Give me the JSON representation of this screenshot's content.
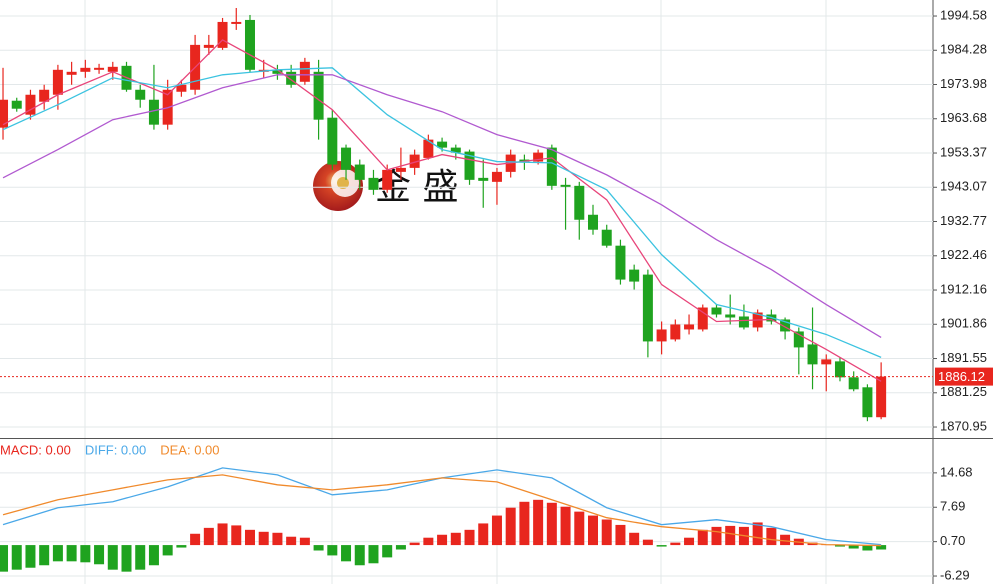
{
  "watermark": "金 盛",
  "chart_data": [
    {
      "type": "candlestick",
      "up_color": "#e8261e",
      "down_color": "#1fa31f",
      "xlim": [
        -0.22,
        67.78
      ],
      "ylim": [
        1867.65,
        1999.4
      ],
      "yticks": [
        1994.58,
        1984.28,
        1973.98,
        1963.68,
        1953.37,
        1943.07,
        1932.77,
        1922.46,
        1912.16,
        1901.86,
        1891.55,
        1881.25,
        1870.95
      ],
      "grid": true,
      "last_price": 1886.12,
      "open": [
        1961.0,
        1969.1,
        1964.9,
        1968.8,
        1970.9,
        1976.9,
        1977.8,
        1978.4,
        1977.8,
        1979.6,
        1972.4,
        1969.4,
        1961.9,
        1971.8,
        1972.4,
        1985.0,
        1985.0,
        1992.2,
        1993.4,
        1977.8,
        1978.4,
        1977.8,
        1974.8,
        1977.8,
        1964.0,
        1955.0,
        1949.9,
        1945.9,
        1942.3,
        1947.7,
        1948.9,
        1951.9,
        1956.8,
        1955.0,
        1953.8,
        1945.9,
        1944.7,
        1947.7,
        1951.4,
        1950.8,
        1955.0,
        1943.8,
        1943.5,
        1934.8,
        1930.3,
        1925.5,
        1918.3,
        1916.8,
        1896.7,
        1897.3,
        1900.3,
        1900.3,
        1906.9,
        1904.8,
        1904.2,
        1900.9,
        1904.8,
        1903.3,
        1899.7,
        1895.8,
        1889.8,
        1890.7,
        1885.9,
        1882.9,
        1873.9
      ],
      "high": [
        1979.0,
        1970.0,
        1972.4,
        1973.9,
        1979.9,
        1980.8,
        1981.4,
        1980.2,
        1980.8,
        1980.8,
        1973.9,
        1979.9,
        1975.4,
        1975.4,
        1988.9,
        1988.9,
        1994.0,
        1997.0,
        1994.9,
        1981.4,
        1979.9,
        1979.9,
        1982.0,
        1981.4,
        1966.4,
        1955.9,
        1951.4,
        1948.3,
        1949.9,
        1955.0,
        1954.4,
        1958.9,
        1958.0,
        1955.9,
        1954.4,
        1951.4,
        1948.9,
        1954.4,
        1952.9,
        1954.4,
        1955.9,
        1945.9,
        1944.7,
        1937.8,
        1931.8,
        1927.3,
        1919.8,
        1918.3,
        1902.7,
        1903.3,
        1904.8,
        1907.8,
        1907.8,
        1910.8,
        1907.8,
        1906.3,
        1906.3,
        1903.9,
        1900.9,
        1906.9,
        1892.8,
        1891.9,
        1887.7,
        1883.8,
        1890.4
      ],
      "low": [
        1957.4,
        1965.8,
        1963.4,
        1966.4,
        1966.4,
        1973.9,
        1976.0,
        1977.2,
        1975.4,
        1971.8,
        1967.0,
        1960.4,
        1960.4,
        1970.3,
        1970.9,
        1982.9,
        1984.4,
        1990.4,
        1977.8,
        1976.0,
        1975.4,
        1973.0,
        1973.9,
        1957.4,
        1948.3,
        1945.3,
        1942.3,
        1940.8,
        1941.4,
        1945.3,
        1946.8,
        1951.4,
        1953.8,
        1951.4,
        1943.8,
        1936.9,
        1937.8,
        1946.0,
        1948.3,
        1949.9,
        1942.3,
        1930.3,
        1927.3,
        1928.8,
        1924.9,
        1913.8,
        1912.3,
        1891.9,
        1892.8,
        1896.7,
        1898.8,
        1899.7,
        1903.9,
        1901.8,
        1900.3,
        1899.7,
        1901.8,
        1897.3,
        1886.8,
        1882.3,
        1881.7,
        1884.7,
        1881.7,
        1872.7,
        1873.3
      ],
      "close": [
        1969.4,
        1966.7,
        1970.9,
        1972.4,
        1978.4,
        1977.8,
        1979.0,
        1979.0,
        1979.3,
        1972.4,
        1969.4,
        1961.9,
        1972.4,
        1973.9,
        1985.9,
        1985.9,
        1992.8,
        1992.8,
        1978.4,
        1978.4,
        1977.2,
        1973.9,
        1980.8,
        1963.4,
        1949.9,
        1948.3,
        1945.3,
        1942.3,
        1948.3,
        1948.9,
        1952.9,
        1957.4,
        1955.0,
        1953.5,
        1945.3,
        1945.0,
        1947.7,
        1952.9,
        1950.8,
        1953.5,
        1943.5,
        1943.2,
        1933.3,
        1930.3,
        1925.5,
        1915.3,
        1914.7,
        1896.7,
        1900.3,
        1901.8,
        1901.8,
        1906.9,
        1904.8,
        1903.9,
        1900.9,
        1905.4,
        1902.7,
        1899.7,
        1894.9,
        1889.8,
        1891.3,
        1885.9,
        1882.3,
        1873.9,
        1886.12
      ],
      "lines": [
        {
          "color": "#e8457a",
          "x": [
            0,
            4,
            8,
            12,
            16,
            20,
            24,
            28,
            32,
            36,
            40,
            44,
            48,
            52,
            56,
            60,
            64
          ],
          "values": [
            1961.9,
            1970.9,
            1977.8,
            1970.9,
            1987.4,
            1978.4,
            1966.4,
            1948.3,
            1952.9,
            1949.9,
            1951.9,
            1939.3,
            1913.8,
            1902.7,
            1903.3,
            1894.3,
            1884.7
          ]
        },
        {
          "color": "#3cc3e0",
          "x": [
            0,
            4,
            8,
            12,
            16,
            20,
            24,
            28,
            32,
            36,
            40,
            44,
            48,
            52,
            56,
            60,
            64
          ],
          "values": [
            1960.4,
            1967.9,
            1976.0,
            1973.0,
            1976.9,
            1978.4,
            1979.0,
            1964.9,
            1954.4,
            1950.8,
            1950.4,
            1942.3,
            1922.8,
            1907.8,
            1903.9,
            1898.8,
            1891.9
          ]
        },
        {
          "color": "#b15ad0",
          "x": [
            0,
            4,
            8,
            12,
            16,
            20,
            24,
            28,
            32,
            36,
            40,
            44,
            48,
            52,
            56,
            60,
            64
          ],
          "values": [
            1945.9,
            1954.4,
            1963.4,
            1967.0,
            1973.0,
            1976.9,
            1976.9,
            1970.9,
            1965.8,
            1958.9,
            1954.4,
            1946.8,
            1937.8,
            1927.3,
            1918.3,
            1907.8,
            1897.9
          ]
        }
      ]
    },
    {
      "type": "macd",
      "up_color": "#e8261e",
      "down_color": "#1fa31f",
      "xlim": [
        -0.22,
        67.78
      ],
      "ylim": [
        -7.91,
        21.36
      ],
      "yticks": [
        14.68,
        7.69,
        {
          "value": 0.7,
          "label": "0.70"
        },
        -6.29
      ],
      "grid": true,
      "series": [
        {
          "name": "MACD: 0.00",
          "color": "#e8261e",
          "values": [
            -5.4,
            -5.0,
            -4.6,
            -4.1,
            -3.3,
            -3.3,
            -3.5,
            -3.9,
            -5.0,
            -5.4,
            -5.0,
            -4.1,
            -2.1,
            -0.5,
            2.3,
            3.5,
            4.4,
            4.0,
            3.1,
            2.7,
            2.5,
            1.7,
            1.5,
            -1.1,
            -2.1,
            -3.3,
            -4.1,
            -3.7,
            -2.5,
            -0.9,
            0.5,
            1.5,
            2.1,
            2.5,
            3.1,
            4.4,
            6.0,
            7.6,
            8.8,
            9.2,
            8.6,
            7.8,
            6.8,
            6.0,
            5.2,
            4.1,
            2.5,
            1.1,
            -0.3,
            0.5,
            1.5,
            3.1,
            3.7,
            3.9,
            3.7,
            4.6,
            3.5,
            2.1,
            1.3,
            0.5,
            0.1,
            -0.3,
            -0.7,
            -1.1,
            -0.9
          ]
        },
        {
          "name": "DIFF: 0.00",
          "color": "#4aa8e8",
          "x": [
            0,
            4,
            8,
            12,
            16,
            20,
            24,
            28,
            32,
            36,
            40,
            44,
            48,
            52,
            56,
            60,
            64
          ],
          "values": [
            4.15,
            7.59,
            8.81,
            11.84,
            15.69,
            14.27,
            10.22,
            11.23,
            13.66,
            15.28,
            13.66,
            7.59,
            4.15,
            5.16,
            3.74,
            1.11,
            0.1
          ]
        },
        {
          "name": "DEA: 0.00",
          "color": "#f08a2c",
          "x": [
            0,
            4,
            8,
            12,
            16,
            20,
            24,
            28,
            32,
            36,
            40,
            44,
            48,
            52,
            56,
            60,
            64
          ],
          "values": [
            6.17,
            9.21,
            11.23,
            13.26,
            14.27,
            12.25,
            11.23,
            12.25,
            13.66,
            12.85,
            9.21,
            5.57,
            3.74,
            2.73,
            1.11,
            0.1,
            -0.1
          ]
        }
      ]
    }
  ]
}
